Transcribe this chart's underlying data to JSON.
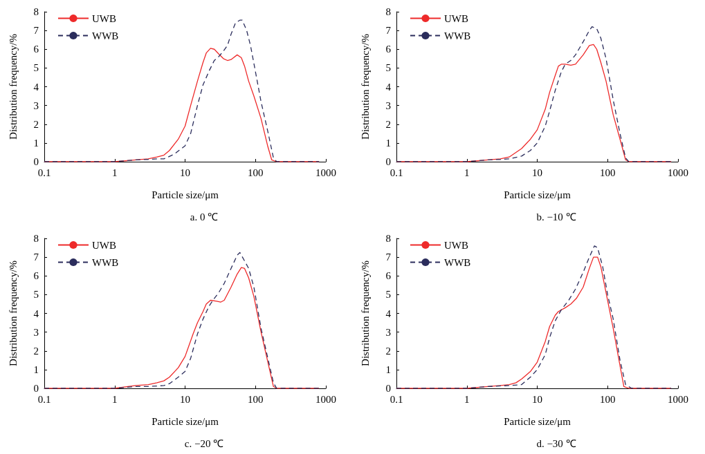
{
  "chart_data": [
    {
      "type": "line",
      "title": "a. 0 ℃",
      "xlabel": "Particle size/μm",
      "ylabel": "Distribution frequency/%",
      "log": "x",
      "xlim": [
        0.1,
        1000
      ],
      "xticks": [
        0.1,
        1,
        10,
        100,
        1000
      ],
      "ylim": [
        0,
        8
      ],
      "yticks": [
        0,
        1,
        2,
        3,
        4,
        5,
        6,
        7,
        8
      ],
      "legend": "top left",
      "grid": false,
      "series": [
        {
          "name": "UWB",
          "color": "#ee2a2a",
          "line_style": "solid",
          "x": [
            0.1,
            1,
            2,
            3,
            4,
            5,
            6,
            8,
            10,
            12,
            15,
            18,
            20,
            23,
            26,
            30,
            35,
            40,
            45,
            55,
            63,
            70,
            80,
            95,
            120,
            150,
            170,
            200,
            800
          ],
          "values": [
            0,
            0,
            0.1,
            0.15,
            0.25,
            0.35,
            0.6,
            1.2,
            1.9,
            3,
            4.3,
            5.3,
            5.8,
            6.05,
            6,
            5.75,
            5.5,
            5.4,
            5.45,
            5.7,
            5.55,
            5.1,
            4.3,
            3.5,
            2.3,
            0.8,
            0.1,
            0,
            0
          ]
        },
        {
          "name": "WWB",
          "color": "#2b2d5c",
          "line_style": "dashed",
          "x": [
            0.1,
            1,
            2,
            3,
            4,
            5,
            7,
            10,
            12,
            15,
            18,
            22,
            26,
            30,
            35,
            40,
            45,
            52,
            60,
            65,
            75,
            85,
            100,
            120,
            150,
            180,
            200,
            800
          ],
          "values": [
            0,
            0,
            0.1,
            0.12,
            0.15,
            0.15,
            0.4,
            0.85,
            1.5,
            3,
            4.1,
            4.85,
            5.4,
            5.6,
            5.9,
            6.2,
            6.8,
            7.4,
            7.55,
            7.55,
            7,
            6.2,
            4.8,
            3.2,
            1.6,
            0.2,
            0,
            0
          ]
        }
      ]
    },
    {
      "type": "line",
      "title": "b. −10 ℃",
      "xlabel": "Particle size/μm",
      "ylabel": "Distribution frequency/%",
      "log": "x",
      "xlim": [
        0.1,
        1000
      ],
      "xticks": [
        0.1,
        1,
        10,
        100,
        1000
      ],
      "ylim": [
        0,
        8
      ],
      "yticks": [
        0,
        1,
        2,
        3,
        4,
        5,
        6,
        7,
        8
      ],
      "legend": "top left",
      "grid": false,
      "series": [
        {
          "name": "UWB",
          "color": "#ee2a2a",
          "line_style": "solid",
          "x": [
            0.1,
            1,
            2,
            3,
            4,
            5,
            6,
            8,
            10,
            13,
            15,
            18,
            20,
            22,
            25,
            30,
            35,
            45,
            55,
            63,
            70,
            80,
            95,
            120,
            150,
            180,
            200,
            800
          ],
          "values": [
            0,
            0,
            0.1,
            0.15,
            0.25,
            0.5,
            0.7,
            1.2,
            1.7,
            2.8,
            3.7,
            4.6,
            5.1,
            5.2,
            5.2,
            5.15,
            5.2,
            5.7,
            6.2,
            6.25,
            6,
            5.3,
            4.3,
            2.5,
            1.2,
            0.1,
            0,
            0
          ]
        },
        {
          "name": "WWB",
          "color": "#2b2d5c",
          "line_style": "dashed",
          "x": [
            0.1,
            1,
            2,
            3,
            4,
            6,
            8,
            10,
            13,
            15,
            18,
            22,
            25,
            30,
            35,
            45,
            55,
            60,
            70,
            80,
            95,
            120,
            150,
            180,
            200,
            800
          ],
          "values": [
            0,
            0,
            0.1,
            0.12,
            0.15,
            0.3,
            0.6,
            1,
            1.9,
            2.7,
            3.8,
            4.8,
            5.2,
            5.4,
            5.7,
            6.4,
            7,
            7.2,
            7.1,
            6.6,
            5.5,
            3.3,
            1.5,
            0.2,
            0,
            0
          ]
        }
      ]
    },
    {
      "type": "line",
      "title": "c. −20 ℃",
      "xlabel": "Particle size/μm",
      "ylabel": "Distribution frequency/%",
      "log": "x",
      "xlim": [
        0.1,
        1000
      ],
      "xticks": [
        0.1,
        1,
        10,
        100,
        1000
      ],
      "ylim": [
        0,
        8
      ],
      "yticks": [
        0,
        1,
        2,
        3,
        4,
        5,
        6,
        7,
        8
      ],
      "legend": "top left",
      "grid": false,
      "series": [
        {
          "name": "UWB",
          "color": "#ee2a2a",
          "line_style": "solid",
          "x": [
            0.1,
            1,
            2,
            3,
            4,
            5,
            6,
            8,
            10,
            13,
            15,
            18,
            20,
            23,
            28,
            32,
            36,
            45,
            55,
            63,
            70,
            80,
            95,
            120,
            150,
            180,
            200,
            800
          ],
          "values": [
            0,
            0,
            0.15,
            0.2,
            0.3,
            0.4,
            0.6,
            1.1,
            1.7,
            2.9,
            3.5,
            4.1,
            4.5,
            4.7,
            4.65,
            4.6,
            4.7,
            5.4,
            6.1,
            6.45,
            6.4,
            5.9,
            4.9,
            3,
            1.4,
            0.1,
            0,
            0
          ]
        },
        {
          "name": "WWB",
          "color": "#2b2d5c",
          "line_style": "dashed",
          "x": [
            0.1,
            1,
            2,
            3,
            5,
            6,
            8,
            10,
            12,
            15,
            18,
            22,
            26,
            30,
            36,
            45,
            55,
            60,
            70,
            80,
            95,
            120,
            150,
            180,
            200,
            800
          ],
          "values": [
            0,
            0,
            0.1,
            0.1,
            0.15,
            0.25,
            0.6,
            0.9,
            1.6,
            2.9,
            3.7,
            4.4,
            4.8,
            5.1,
            5.6,
            6.4,
            7.1,
            7.25,
            6.8,
            6.4,
            5.4,
            3.2,
            1.6,
            0.3,
            0,
            0
          ]
        }
      ]
    },
    {
      "type": "line",
      "title": "d. −30 ℃",
      "xlabel": "Particle size/μm",
      "ylabel": "Distribution frequency/%",
      "log": "x",
      "xlim": [
        0.1,
        1000
      ],
      "xticks": [
        0.1,
        1,
        10,
        100,
        1000
      ],
      "ylim": [
        0,
        8
      ],
      "yticks": [
        0,
        1,
        2,
        3,
        4,
        5,
        6,
        7,
        8
      ],
      "legend": "top left",
      "grid": false,
      "series": [
        {
          "name": "UWB",
          "color": "#ee2a2a",
          "line_style": "solid",
          "x": [
            0.1,
            1,
            2,
            3,
            4,
            5,
            6,
            8,
            10,
            13,
            15,
            18,
            20,
            25,
            30,
            36,
            45,
            55,
            63,
            72,
            80,
            95,
            120,
            150,
            170,
            200,
            800
          ],
          "values": [
            0,
            0,
            0.1,
            0.15,
            0.2,
            0.3,
            0.5,
            0.9,
            1.4,
            2.5,
            3.3,
            3.9,
            4.1,
            4.3,
            4.5,
            4.8,
            5.4,
            6.4,
            7,
            7,
            6.5,
            5.1,
            3.2,
            1.2,
            0.1,
            0,
            0
          ]
        },
        {
          "name": "WWB",
          "color": "#2b2d5c",
          "line_style": "dashed",
          "x": [
            0.1,
            1,
            2,
            4,
            6,
            8,
            10,
            13,
            15,
            18,
            22,
            28,
            35,
            45,
            55,
            65,
            72,
            85,
            100,
            120,
            150,
            180,
            220,
            800
          ],
          "values": [
            0,
            0,
            0.1,
            0.15,
            0.2,
            0.6,
            1,
            1.8,
            2.7,
            3.6,
            4.2,
            4.7,
            5.3,
            6.2,
            7,
            7.6,
            7.5,
            6.5,
            5,
            3.7,
            1.5,
            0.2,
            0,
            0
          ]
        }
      ]
    }
  ]
}
